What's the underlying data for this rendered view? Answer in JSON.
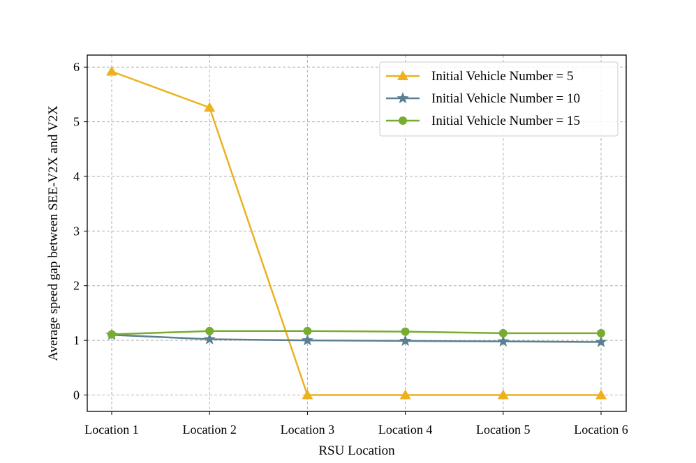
{
  "chart_data": {
    "type": "line",
    "title": "",
    "xlabel": "RSU Location",
    "ylabel": "Average speed gap between SEE-V2X and V2X",
    "categories": [
      "Location 1",
      "Location 2",
      "Location 3",
      "Location 4",
      "Location 5",
      "Location 6"
    ],
    "ylim": [
      -0.3,
      6.22
    ],
    "yticks": [
      0,
      1,
      2,
      3,
      4,
      5,
      6
    ],
    "grid": true,
    "legend_position": "top-right",
    "series": [
      {
        "name": "Initial Vehicle Number = 5",
        "color": "#EDB120",
        "marker": "triangle",
        "values": [
          5.92,
          5.26,
          0.0,
          0.0,
          0.0,
          0.0
        ]
      },
      {
        "name": "Initial Vehicle Number = 10",
        "color": "#5B7F92",
        "marker": "star",
        "values": [
          1.1,
          1.02,
          1.0,
          0.99,
          0.98,
          0.97
        ]
      },
      {
        "name": "Initial Vehicle Number = 15",
        "color": "#77AC30",
        "marker": "circle",
        "values": [
          1.11,
          1.17,
          1.17,
          1.16,
          1.13,
          1.13
        ]
      }
    ]
  }
}
